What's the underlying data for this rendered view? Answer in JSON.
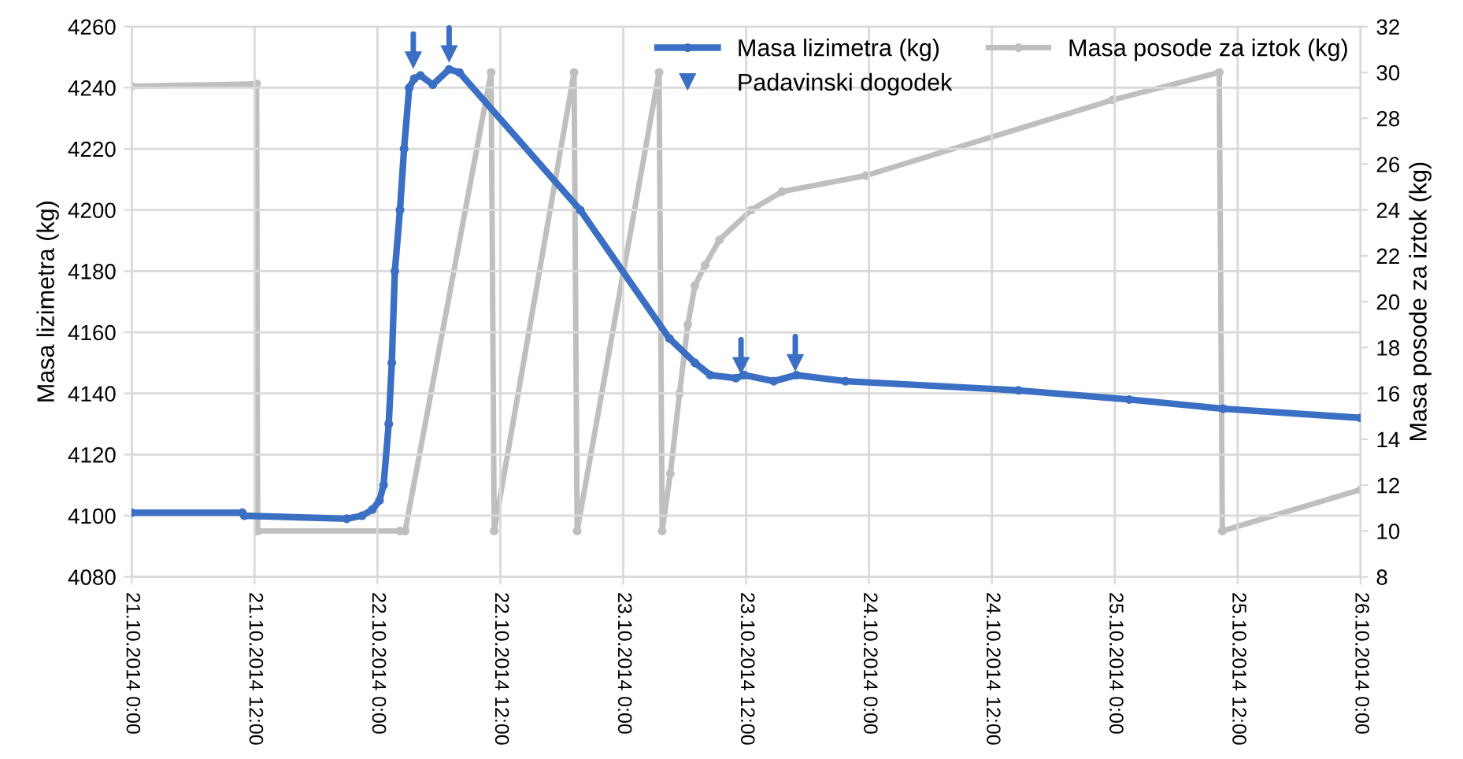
{
  "chart_data": {
    "type": "line",
    "xlabel": null,
    "ylabel": "Masa lizimetra (kg)",
    "y2label": "Masa posode za iztok (kg)",
    "xlim": [
      "2014-10-21T00:00",
      "2014-10-26T00:00"
    ],
    "xticks": [
      {
        "value": "2014-10-21T00:00",
        "label": "21.10.2014 0:00"
      },
      {
        "value": "2014-10-21T12:00",
        "label": "21.10.2014 12:00"
      },
      {
        "value": "2014-10-22T00:00",
        "label": "22.10.2014 0:00"
      },
      {
        "value": "2014-10-22T12:00",
        "label": "22.10.2014 12:00"
      },
      {
        "value": "2014-10-23T00:00",
        "label": "23.10.2014 0:00"
      },
      {
        "value": "2014-10-23T12:00",
        "label": "23.10.2014 12:00"
      },
      {
        "value": "2014-10-24T00:00",
        "label": "24.10.2014 0:00"
      },
      {
        "value": "2014-10-24T12:00",
        "label": "24.10.2014 12:00"
      },
      {
        "value": "2014-10-25T00:00",
        "label": "25.10.2014 0:00"
      },
      {
        "value": "2014-10-25T12:00",
        "label": "25.10.2014 12:00"
      },
      {
        "value": "2014-10-26T00:00",
        "label": "26.10.2014 0:00"
      }
    ],
    "ylim": [
      4080,
      4260
    ],
    "yticks": [
      4080,
      4100,
      4120,
      4140,
      4160,
      4180,
      4200,
      4220,
      4240,
      4260
    ],
    "y2lim": [
      8,
      32
    ],
    "y2ticks": [
      8,
      10,
      12,
      14,
      16,
      18,
      20,
      22,
      24,
      26,
      28,
      30,
      32
    ],
    "grid": true,
    "legend": "top right",
    "line_style": "solid",
    "series": [
      {
        "name": "Masa lizimetra (kg)",
        "marker": "circle",
        "color": "#3a6fc4",
        "x": [
          "2014-10-21T00:00",
          "2014-10-21T10:48",
          "2014-10-21T11:00",
          "2014-10-21T21:00",
          "2014-10-21T22:30",
          "2014-10-21T23:30",
          "2014-10-22T00:12",
          "2014-10-22T00:36",
          "2014-10-22T01:06",
          "2014-10-22T01:24",
          "2014-10-22T01:42",
          "2014-10-22T02:12",
          "2014-10-22T02:36",
          "2014-10-22T03:06",
          "2014-10-22T03:36",
          "2014-10-22T04:12",
          "2014-10-22T05:24",
          "2014-10-22T07:00",
          "2014-10-22T08:00",
          "2014-10-22T19:48",
          "2014-10-23T04:30",
          "2014-10-23T07:00",
          "2014-10-23T08:30",
          "2014-10-23T11:00",
          "2014-10-23T11:48",
          "2014-10-23T14:42",
          "2014-10-23T16:54",
          "2014-10-23T21:42",
          "2014-10-24T14:36",
          "2014-10-25T01:24",
          "2014-10-25T10:36",
          "2014-10-26T00:00"
        ],
        "values": [
          4101,
          4101,
          4100,
          4099,
          4100,
          4102,
          4105,
          4110,
          4130,
          4150,
          4180,
          4200,
          4220,
          4240,
          4243,
          4244,
          4241,
          4246,
          4245,
          4200,
          4158,
          4150,
          4146,
          4145,
          4146,
          4144,
          4146,
          4144,
          4141,
          4138,
          4135,
          4132
        ]
      },
      {
        "name": "Masa posode za iztok (kg)",
        "marker": "circle",
        "axis": "y2",
        "color": "#bfbfbf",
        "x": [
          "2014-10-21T00:00",
          "2014-10-21T12:12",
          "2014-10-21T12:18",
          "2014-10-22T02:12",
          "2014-10-22T02:42",
          "2014-10-22T11:06",
          "2014-10-22T11:24",
          "2014-10-22T19:12",
          "2014-10-22T19:30",
          "2014-10-23T03:30",
          "2014-10-23T03:48",
          "2014-10-23T04:36",
          "2014-10-23T05:30",
          "2014-10-23T06:18",
          "2014-10-23T07:00",
          "2014-10-23T08:00",
          "2014-10-23T09:24",
          "2014-10-23T12:30",
          "2014-10-23T15:30",
          "2014-10-23T23:42",
          "2014-10-24T23:48",
          "2014-10-25T10:12",
          "2014-10-25T10:30",
          "2014-10-26T00:00"
        ],
        "values": [
          29.4,
          29.5,
          10,
          10,
          10,
          30,
          10,
          30,
          10,
          30,
          10,
          12.5,
          16,
          19,
          20.7,
          21.6,
          22.7,
          24,
          24.8,
          25.5,
          28.8,
          30,
          10,
          11.8
        ]
      },
      {
        "name": "Padavinski dogodek",
        "type": "scatter",
        "marker": "triangle",
        "color": "#3a6fc4",
        "x": [
          "2014-10-22T03:30",
          "2014-10-22T07:00",
          "2014-10-23T11:30",
          "2014-10-23T16:48"
        ],
        "values": [
          4249,
          4251,
          4149,
          4150
        ]
      }
    ]
  }
}
